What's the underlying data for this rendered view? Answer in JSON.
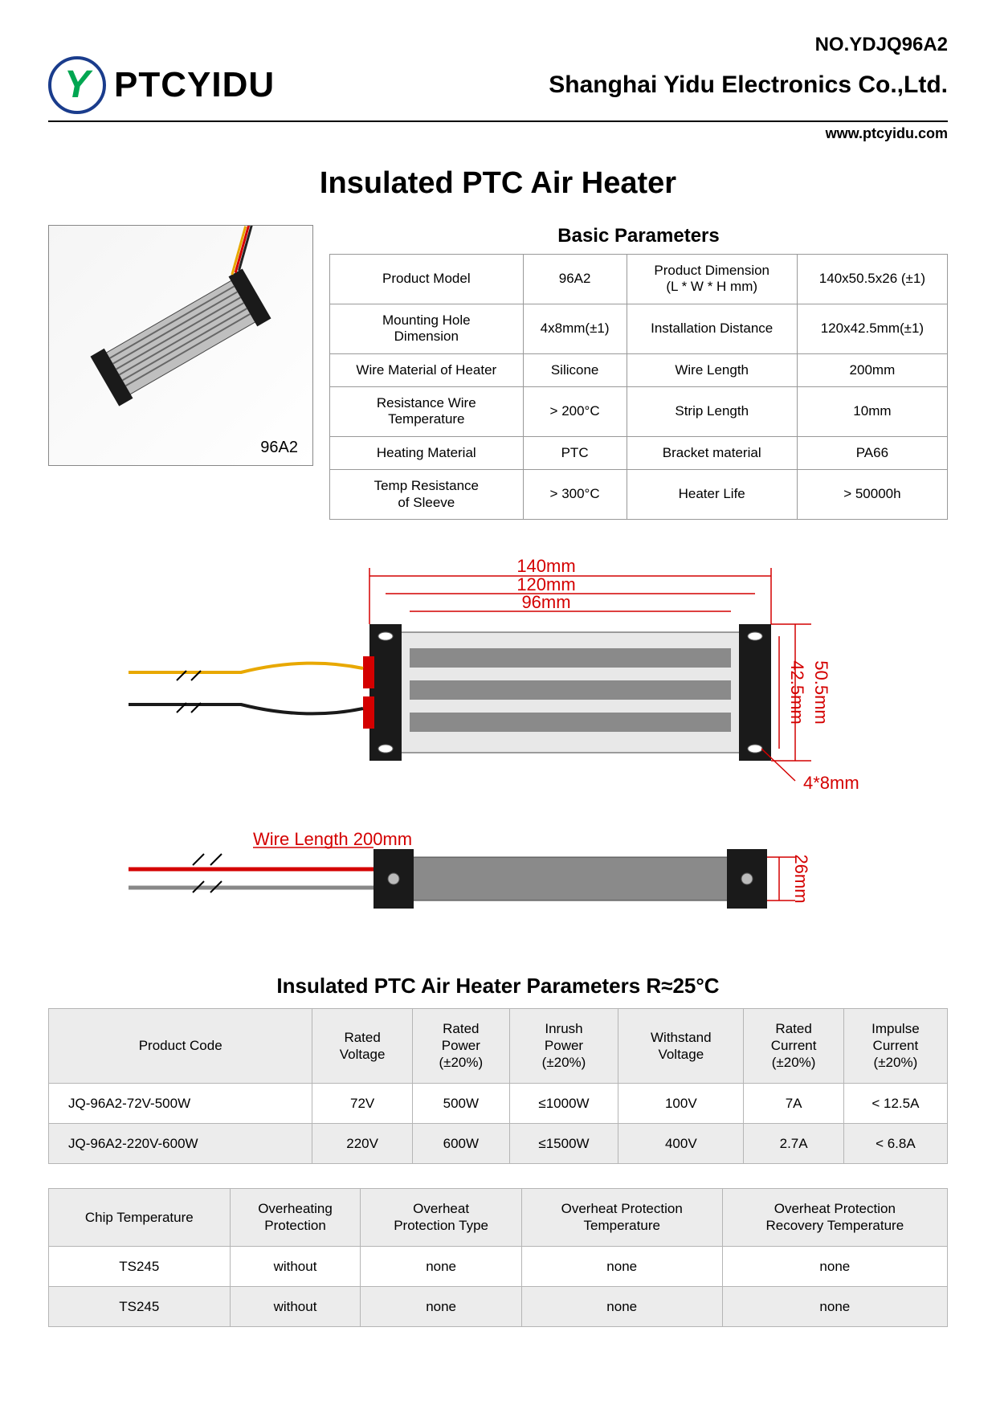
{
  "doc_number": "NO.YDJQ96A2",
  "brand": "PTCYIDU",
  "company": "Shanghai Yidu Electronics Co.,Ltd.",
  "website": "www.ptcyidu.com",
  "main_title": "Insulated PTC Air Heater",
  "product_label": "96A2",
  "basic_params_title": "Basic Parameters",
  "basic_params": [
    [
      "Product Model",
      "96A2",
      "Product Dimension\n(L * W * H mm)",
      "140x50.5x26 (±1)"
    ],
    [
      "Mounting Hole\nDimension",
      "4x8mm(±1)",
      "Installation Distance",
      "120x42.5mm(±1)"
    ],
    [
      "Wire Material of Heater",
      "Silicone",
      "Wire Length",
      "200mm"
    ],
    [
      "Resistance Wire\nTemperature",
      "> 200°C",
      "Strip Length",
      "10mm"
    ],
    [
      "Heating Material",
      "PTC",
      "Bracket material",
      "PA66"
    ],
    [
      "Temp Resistance\nof Sleeve",
      "> 300°C",
      "Heater Life",
      "> 50000h"
    ]
  ],
  "dims": {
    "w140": "140mm",
    "w120": "120mm",
    "w96": "96mm",
    "h505": "50.5mm",
    "h425": "42.5mm",
    "hole": "4*8mm",
    "wire": "Wire Length 200mm",
    "h26": "26mm"
  },
  "section2_title": "Insulated PTC Air Heater Parameters R≈25°C",
  "spec1": {
    "headers": [
      "Product Code",
      "Rated\nVoltage",
      "Rated\nPower\n(±20%)",
      "Inrush\nPower\n(±20%)",
      "Withstand\nVoltage",
      "Rated\nCurrent\n(±20%)",
      "Impulse\nCurrent\n(±20%)"
    ],
    "rows": [
      [
        "JQ-96A2-72V-500W",
        "72V",
        "500W",
        "≤1000W",
        "100V",
        "7A",
        "< 12.5A"
      ],
      [
        "JQ-96A2-220V-600W",
        "220V",
        "600W",
        "≤1500W",
        "400V",
        "2.7A",
        "< 6.8A"
      ]
    ]
  },
  "spec2": {
    "headers": [
      "Chip Temperature",
      "Overheating\nProtection",
      "Overheat\nProtection Type",
      "Overheat Protection\nTemperature",
      "Overheat Protection\nRecovery Temperature"
    ],
    "rows": [
      [
        "TS245",
        "without",
        "none",
        "none",
        "none"
      ],
      [
        "TS245",
        "without",
        "none",
        "none",
        "none"
      ]
    ]
  },
  "colors": {
    "border": "#999999",
    "red": "#d40000",
    "grey_fill": "#ececec",
    "black": "#1a1a1a",
    "body_grey": "#8a8a8a",
    "wire_yellow": "#e8a800",
    "wire_red": "#d40000",
    "wire_grey": "#888888"
  }
}
